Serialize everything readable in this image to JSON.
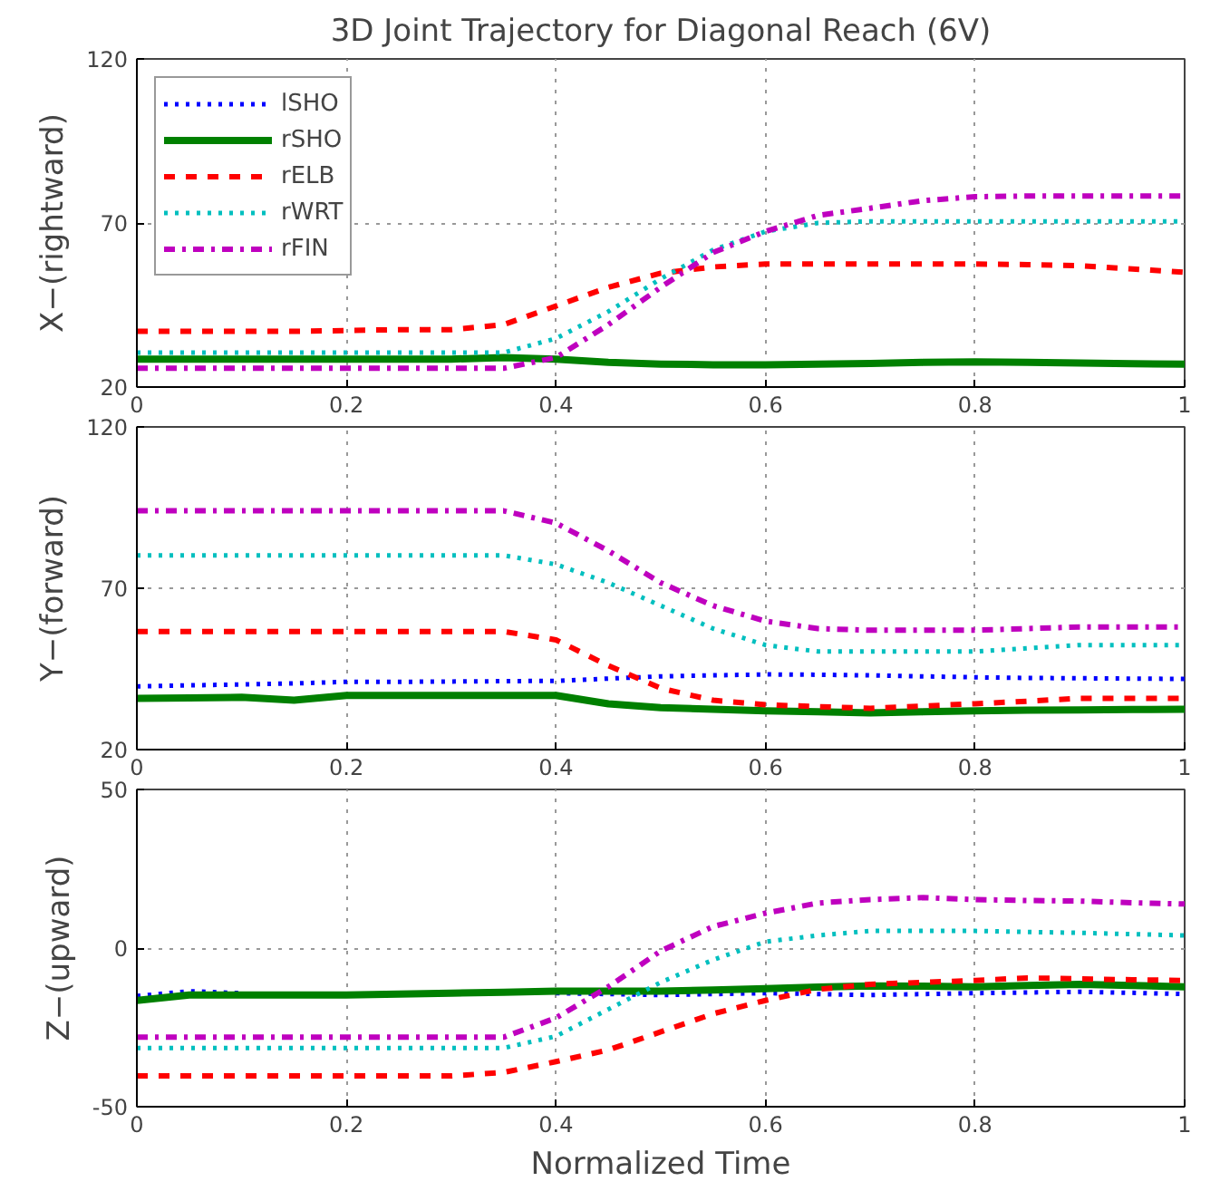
{
  "chart_data": [
    {
      "type": "line",
      "title": "3D Joint Trajectory for Diagonal Reach (6V)",
      "ylabel": "X−(rightward)",
      "legend": "top left",
      "grid": true,
      "x": [
        0,
        0.05,
        0.1,
        0.15,
        0.2,
        0.25,
        0.3,
        0.35,
        0.4,
        0.45,
        0.5,
        0.55,
        0.6,
        0.65,
        0.7,
        0.75,
        0.8,
        0.85,
        0.9,
        0.95,
        1
      ],
      "xlim": [
        0,
        1
      ],
      "xticks": [
        0,
        0.2,
        0.4,
        0.6,
        0.8,
        1
      ],
      "ylim": [
        20,
        120
      ],
      "yticks": [
        20,
        70,
        120
      ],
      "series": [
        {
          "name": "lSHO",
          "color": "#0000ff",
          "line_style": "dotted",
          "values": [
            null,
            null,
            null,
            null,
            null,
            null,
            null,
            null,
            null,
            null,
            null,
            null,
            null,
            null,
            null,
            null,
            null,
            null,
            null,
            null,
            null
          ]
        },
        {
          "name": "rSHO",
          "color": "#008000",
          "line_style": "solid",
          "values": [
            28.5,
            28.5,
            28.5,
            28.5,
            28.5,
            28.5,
            28.5,
            29,
            28.5,
            27.5,
            27,
            26.8,
            26.8,
            27,
            27.2,
            27.5,
            27.7,
            27.5,
            27.3,
            27.1,
            27
          ]
        },
        {
          "name": "rELB",
          "color": "#ff0000",
          "line_style": "dashed",
          "values": [
            37,
            37,
            37,
            37,
            37.2,
            37.5,
            37.5,
            39,
            44.7,
            50.4,
            54.7,
            56.6,
            57.5,
            57.5,
            57.5,
            57.5,
            57.5,
            57.3,
            57,
            56,
            55
          ]
        },
        {
          "name": "rWRT",
          "color": "#00bfbf",
          "line_style": "dotted",
          "values": [
            30.5,
            30.5,
            30.5,
            30.5,
            30.5,
            30.5,
            30.5,
            30.5,
            34.8,
            43,
            53,
            61.8,
            67.4,
            70,
            70.5,
            70.5,
            70.5,
            70.5,
            70.5,
            70.5,
            70.5
          ]
        },
        {
          "name": "rFIN",
          "color": "#bf00bf",
          "line_style": "dashdot",
          "values": [
            25.7,
            25.7,
            25.7,
            25.7,
            25.7,
            25.7,
            25.7,
            25.7,
            29,
            39,
            50.4,
            61,
            67.4,
            72.3,
            74.5,
            76.8,
            78,
            78.2,
            78.2,
            78.2,
            78.2
          ]
        }
      ]
    },
    {
      "type": "line",
      "ylabel": "Y−(forward)",
      "grid": true,
      "x": [
        0,
        0.05,
        0.1,
        0.15,
        0.2,
        0.25,
        0.3,
        0.35,
        0.4,
        0.45,
        0.5,
        0.55,
        0.6,
        0.65,
        0.7,
        0.75,
        0.8,
        0.85,
        0.9,
        0.95,
        1
      ],
      "xlim": [
        0,
        1
      ],
      "xticks": [
        0,
        0.2,
        0.4,
        0.6,
        0.8,
        1
      ],
      "ylim": [
        20,
        120
      ],
      "yticks": [
        20,
        70,
        120
      ],
      "series": [
        {
          "color": "#0000ff",
          "line_style": "dotted",
          "values": [
            39.6,
            39.9,
            40.2,
            40.5,
            41,
            41,
            41.1,
            41.2,
            41.3,
            42,
            42.7,
            43,
            43.3,
            43.2,
            43,
            42.7,
            42.4,
            42.2,
            42.1,
            42,
            41.9
          ]
        },
        {
          "color": "#008000",
          "line_style": "solid",
          "values": [
            35.9,
            36,
            36.2,
            35.3,
            36.8,
            36.8,
            36.8,
            36.8,
            36.8,
            34.2,
            33,
            32.5,
            32,
            31.7,
            31.4,
            31.7,
            32,
            32.2,
            32.3,
            32.4,
            32.5
          ]
        },
        {
          "color": "#ff0000",
          "line_style": "dashed",
          "values": [
            56.6,
            56.6,
            56.6,
            56.6,
            56.6,
            56.6,
            56.6,
            56.6,
            54,
            46,
            39,
            35.3,
            33.9,
            33.3,
            32.8,
            33.5,
            34.2,
            35,
            35.9,
            35.9,
            35.9
          ]
        },
        {
          "color": "#00bfbf",
          "line_style": "dotted",
          "values": [
            80.2,
            80.2,
            80.2,
            80.2,
            80.2,
            80.2,
            80.2,
            80.2,
            77.4,
            71.7,
            64.6,
            57.5,
            52.4,
            50.4,
            50.4,
            50.4,
            50.4,
            51.4,
            52.4,
            52.4,
            52.4
          ]
        },
        {
          "color": "#bf00bf",
          "line_style": "dashdot",
          "values": [
            94,
            94,
            94,
            94,
            94,
            94,
            94,
            94,
            90.2,
            81.6,
            71.7,
            64.6,
            59.8,
            57.5,
            57,
            57,
            57,
            57.5,
            58,
            58,
            58
          ]
        }
      ]
    },
    {
      "type": "line",
      "ylabel": "Z−(upward)",
      "xlabel": "Normalized Time",
      "grid": true,
      "x": [
        0,
        0.05,
        0.1,
        0.15,
        0.2,
        0.25,
        0.3,
        0.35,
        0.4,
        0.45,
        0.5,
        0.55,
        0.6,
        0.65,
        0.7,
        0.75,
        0.8,
        0.85,
        0.9,
        0.95,
        1
      ],
      "xlim": [
        0,
        1
      ],
      "xticks": [
        0,
        0.2,
        0.4,
        0.6,
        0.8,
        1
      ],
      "ylim": [
        -50,
        50
      ],
      "yticks": [
        -50,
        0,
        50
      ],
      "series": [
        {
          "color": "#0000ff",
          "line_style": "dotted",
          "values": [
            -15.1,
            -13.6,
            -14.2,
            null,
            null,
            null,
            null,
            null,
            -14.2,
            -14.5,
            -14.8,
            -14.5,
            -14.2,
            -14.5,
            -14.8,
            -14.5,
            -14.2,
            -14,
            -13.8,
            -14.1,
            -14.5
          ]
        },
        {
          "color": "#008000",
          "line_style": "solid",
          "values": [
            -16.5,
            -14.8,
            -14.8,
            -14.8,
            -14.8,
            -14.5,
            -14.2,
            -13.9,
            -13.6,
            -13.6,
            -13.6,
            -13.2,
            -12.8,
            -12.3,
            -11.9,
            -12,
            -12.2,
            -11.8,
            -11.4,
            -11.8,
            -12.2
          ]
        },
        {
          "color": "#ff0000",
          "line_style": "dashed",
          "values": [
            -40.3,
            -40.3,
            -40.3,
            -40.3,
            -40.3,
            -40.3,
            -40.3,
            -39.2,
            -35.8,
            -32.1,
            -26.4,
            -20.7,
            -16.5,
            -13,
            -11.4,
            -10.8,
            -10.2,
            -9.4,
            -9.7,
            -10,
            -10.2
          ]
        },
        {
          "color": "#00bfbf",
          "line_style": "dotted",
          "values": [
            -31.5,
            -31.5,
            -31.5,
            -31.5,
            -31.5,
            -31.5,
            -31.5,
            -31.5,
            -27.8,
            -19.3,
            -10.8,
            -3.7,
            2,
            4,
            5.4,
            5.4,
            5.4,
            5.1,
            4.8,
            4.4,
            4
          ]
        },
        {
          "color": "#bf00bf",
          "line_style": "dashdot",
          "values": [
            -28.1,
            -28.1,
            -28.1,
            -28.1,
            -28.1,
            -28.1,
            -28.1,
            -28.1,
            -22,
            -12.2,
            -0.9,
            6.8,
            11,
            14.2,
            15.3,
            15.9,
            15.3,
            15,
            14.8,
            14.3,
            13.9
          ]
        }
      ]
    }
  ]
}
